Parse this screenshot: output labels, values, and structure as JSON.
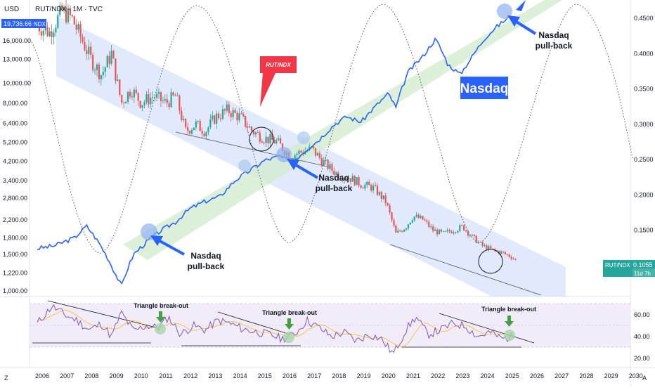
{
  "header": {
    "currency": "USD",
    "symbol_line": "RUT/NDX · 1M · TVC",
    "ndx_price": "19,736.66",
    "ndx_tag": "NDX"
  },
  "price_tag": {
    "label": "RUT/NDX",
    "value": "0.1055",
    "countdown": "11d 7h"
  },
  "bottom_bar": {
    "left": "Z",
    "right": "A"
  },
  "colors": {
    "up": "#26a69a",
    "down": "#ef5350",
    "nasdaq": "#2962ff",
    "channel": "#dbe6fb",
    "green_channel": "#d3ecd0",
    "arrow": "#2962ff",
    "callout": "#f23645",
    "rsi": "#7e57c2",
    "rsi_ma": "#f5c242"
  },
  "annotations": {
    "nasdaq_label": "Nasdaq",
    "pullback_1": "Nasdaq\npull-back",
    "pullback_2": "Nasdaq\npull-back",
    "pullback_3": "Nasdaq\npull-back",
    "callout": "RUT/NDX",
    "triangle_1": "Triangle break-out",
    "triangle_2": "Triangle break-out",
    "triangle_3": "Triangle break-out"
  },
  "chart_data": {
    "type": "line",
    "x_ticks": [
      "2006",
      "2007",
      "2008",
      "2009",
      "2010",
      "2011",
      "2012",
      "2013",
      "2014",
      "2015",
      "2016",
      "2017",
      "2018",
      "2019",
      "2020",
      "2021",
      "2022",
      "2023",
      "2024",
      "2025",
      "2026",
      "2027",
      "2028",
      "2029",
      "2030"
    ],
    "left_axis": {
      "scale": "log",
      "ticks": [
        16000,
        13000,
        10000,
        8000,
        6400,
        5200,
        4200,
        3400,
        2800,
        2200,
        1800,
        1500,
        1220,
        1000
      ],
      "tick_labels": [
        "16,000.00",
        "13,000.00",
        "10,000.00",
        "8,000.00",
        "6,400.00",
        "5,200.00",
        "4,200.00",
        "3,400.00",
        "2,800.00",
        "2,200.00",
        "1,800.00",
        "1,500.00",
        "1,220.00",
        "1,000.00"
      ]
    },
    "right_axis": {
      "ticks": [
        0.45,
        0.4,
        0.35,
        0.3,
        0.25,
        0.2,
        0.15,
        0.1
      ],
      "tick_labels": [
        "0.4500",
        "0.4000",
        "0.3500",
        "0.3000",
        "0.2500",
        "0.2000",
        "0.1500",
        "0.1000"
      ]
    },
    "rsi_axis": {
      "ticks": [
        60,
        40,
        20
      ],
      "tick_labels": [
        "60.00",
        "40.00",
        "20.00"
      ]
    },
    "ratio_series": {
      "name": "RUT/NDX",
      "points": [
        [
          2005.8,
          0.44
        ],
        [
          2006.3,
          0.43
        ],
        [
          2006.8,
          0.46
        ],
        [
          2007.2,
          0.45
        ],
        [
          2007.6,
          0.42
        ],
        [
          2008.0,
          0.39
        ],
        [
          2008.4,
          0.37
        ],
        [
          2008.8,
          0.4
        ],
        [
          2009.2,
          0.33
        ],
        [
          2009.6,
          0.35
        ],
        [
          2010.0,
          0.33
        ],
        [
          2010.5,
          0.34
        ],
        [
          2011.0,
          0.33
        ],
        [
          2011.4,
          0.34
        ],
        [
          2011.8,
          0.29
        ],
        [
          2012.2,
          0.3
        ],
        [
          2012.6,
          0.29
        ],
        [
          2013.0,
          0.31
        ],
        [
          2013.5,
          0.32
        ],
        [
          2014.0,
          0.31
        ],
        [
          2014.5,
          0.29
        ],
        [
          2015.0,
          0.28
        ],
        [
          2015.5,
          0.275
        ],
        [
          2016.0,
          0.255
        ],
        [
          2016.4,
          0.26
        ],
        [
          2016.9,
          0.265
        ],
        [
          2017.4,
          0.245
        ],
        [
          2017.9,
          0.23
        ],
        [
          2018.4,
          0.225
        ],
        [
          2018.9,
          0.215
        ],
        [
          2019.4,
          0.21
        ],
        [
          2019.9,
          0.19
        ],
        [
          2020.3,
          0.145
        ],
        [
          2020.7,
          0.155
        ],
        [
          2021.0,
          0.17
        ],
        [
          2021.4,
          0.165
        ],
        [
          2021.8,
          0.15
        ],
        [
          2022.2,
          0.145
        ],
        [
          2022.6,
          0.15
        ],
        [
          2023.0,
          0.155
        ],
        [
          2023.4,
          0.14
        ],
        [
          2023.8,
          0.128
        ],
        [
          2024.2,
          0.122
        ],
        [
          2024.6,
          0.118
        ],
        [
          2025.0,
          0.112
        ],
        [
          2025.2,
          0.1055
        ]
      ]
    },
    "nasdaq_series": {
      "name": "NDX",
      "points": [
        [
          2005.8,
          1600
        ],
        [
          2006.5,
          1650
        ],
        [
          2007.3,
          1800
        ],
        [
          2007.8,
          2050
        ],
        [
          2008.3,
          1700
        ],
        [
          2008.9,
          1250
        ],
        [
          2009.2,
          1050
        ],
        [
          2009.7,
          1500
        ],
        [
          2010.3,
          1750
        ],
        [
          2010.8,
          1950
        ],
        [
          2011.4,
          2150
        ],
        [
          2012.0,
          2500
        ],
        [
          2012.6,
          2700
        ],
        [
          2013.2,
          2850
        ],
        [
          2013.8,
          3400
        ],
        [
          2014.4,
          3800
        ],
        [
          2015.0,
          4250
        ],
        [
          2015.6,
          4450
        ],
        [
          2016.1,
          4150
        ],
        [
          2016.6,
          4700
        ],
        [
          2017.2,
          5350
        ],
        [
          2017.8,
          6300
        ],
        [
          2018.3,
          6900
        ],
        [
          2018.9,
          6500
        ],
        [
          2019.5,
          7800
        ],
        [
          2020.0,
          8900
        ],
        [
          2020.3,
          7600
        ],
        [
          2020.8,
          11300
        ],
        [
          2021.4,
          13500
        ],
        [
          2021.9,
          16300
        ],
        [
          2022.4,
          12300
        ],
        [
          2022.9,
          11000
        ],
        [
          2023.4,
          13500
        ],
        [
          2023.9,
          16500
        ],
        [
          2024.4,
          18800
        ],
        [
          2024.9,
          20900
        ],
        [
          2025.2,
          19736.66
        ]
      ]
    },
    "rsi_series": {
      "name": "RSI",
      "points": [
        [
          2005.8,
          52
        ],
        [
          2006.4,
          68
        ],
        [
          2006.9,
          60
        ],
        [
          2007.4,
          55
        ],
        [
          2007.9,
          46
        ],
        [
          2008.4,
          52
        ],
        [
          2008.8,
          40
        ],
        [
          2009.2,
          62
        ],
        [
          2009.7,
          45
        ],
        [
          2010.2,
          50
        ],
        [
          2010.7,
          48
        ],
        [
          2011.1,
          58
        ],
        [
          2011.6,
          42
        ],
        [
          2012.1,
          50
        ],
        [
          2012.6,
          46
        ],
        [
          2013.1,
          55
        ],
        [
          2013.6,
          52
        ],
        [
          2014.1,
          47
        ],
        [
          2014.7,
          44
        ],
        [
          2015.2,
          42
        ],
        [
          2015.7,
          38
        ],
        [
          2016.2,
          42
        ],
        [
          2016.7,
          55
        ],
        [
          2017.2,
          48
        ],
        [
          2017.7,
          40
        ],
        [
          2018.2,
          44
        ],
        [
          2018.7,
          36
        ],
        [
          2019.2,
          42
        ],
        [
          2019.7,
          38
        ],
        [
          2020.2,
          24
        ],
        [
          2020.7,
          46
        ],
        [
          2021.1,
          58
        ],
        [
          2021.6,
          42
        ],
        [
          2022.1,
          46
        ],
        [
          2022.6,
          52
        ],
        [
          2023.1,
          50
        ],
        [
          2023.6,
          40
        ],
        [
          2024.1,
          44
        ],
        [
          2024.6,
          38
        ],
        [
          2025.1,
          40
        ]
      ]
    }
  }
}
